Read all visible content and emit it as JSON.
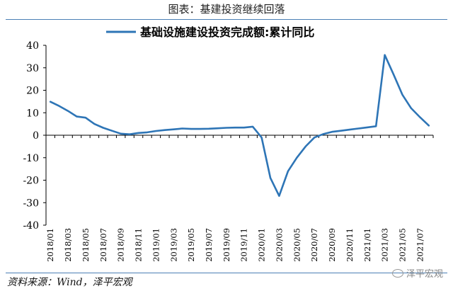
{
  "figure": {
    "caption": "图表：基建投资继续回落",
    "source": "资料来源：Wind，泽平宏观",
    "watermark": "泽平宏观"
  },
  "colors": {
    "series": "#2E75B6",
    "axis": "#000000"
  },
  "icons": {
    "watermark": "wechat-icon"
  },
  "chart_data": {
    "type": "line",
    "title": "",
    "xlabel": "",
    "ylabel": "",
    "ylim": [
      -40,
      40
    ],
    "yticks": [
      -40,
      -30,
      -20,
      -10,
      0,
      10,
      20,
      30,
      40
    ],
    "grid": false,
    "legend_position": "top",
    "x": [
      "2018/01",
      "2018/02",
      "2018/03",
      "2018/04",
      "2018/05",
      "2018/06",
      "2018/07",
      "2018/08",
      "2018/09",
      "2018/10",
      "2018/11",
      "2018/12",
      "2019/01",
      "2019/02",
      "2019/03",
      "2019/04",
      "2019/05",
      "2019/06",
      "2019/07",
      "2019/08",
      "2019/09",
      "2019/10",
      "2019/11",
      "2019/12",
      "2020/01",
      "2020/02",
      "2020/03",
      "2020/04",
      "2020/05",
      "2020/06",
      "2020/07",
      "2020/08",
      "2020/09",
      "2020/10",
      "2020/11",
      "2020/12",
      "2021/01",
      "2021/02",
      "2021/03",
      "2021/04",
      "2021/05",
      "2021/06",
      "2021/07",
      "2021/08"
    ],
    "xtick_labels": [
      "2018/01",
      "2018/03",
      "2018/05",
      "2018/07",
      "2018/09",
      "2018/11",
      "2019/01",
      "2019/03",
      "2019/05",
      "2019/07",
      "2019/09",
      "2019/11",
      "2020/01",
      "2020/03",
      "2020/05",
      "2020/07",
      "2020/09",
      "2020/11",
      "2021/01",
      "2021/03",
      "2021/05",
      "2021/07"
    ],
    "series": [
      {
        "name": "基础设施建设投资完成额:累计同比",
        "values": [
          14.9,
          13.0,
          10.8,
          8.3,
          7.8,
          5.0,
          3.3,
          2.0,
          0.7,
          0.4,
          1.0,
          1.3,
          1.9,
          2.3,
          2.6,
          3.0,
          2.8,
          2.8,
          2.9,
          3.1,
          3.3,
          3.4,
          3.4,
          3.8,
          -1.0,
          -19.0,
          -27.0,
          -16.0,
          -10.0,
          -5.0,
          -1.0,
          0.5,
          1.5,
          2.0,
          2.5,
          3.0,
          3.5,
          4.0,
          35.7,
          27.0,
          18.0,
          12.0,
          8.0,
          4.3
        ]
      }
    ]
  }
}
